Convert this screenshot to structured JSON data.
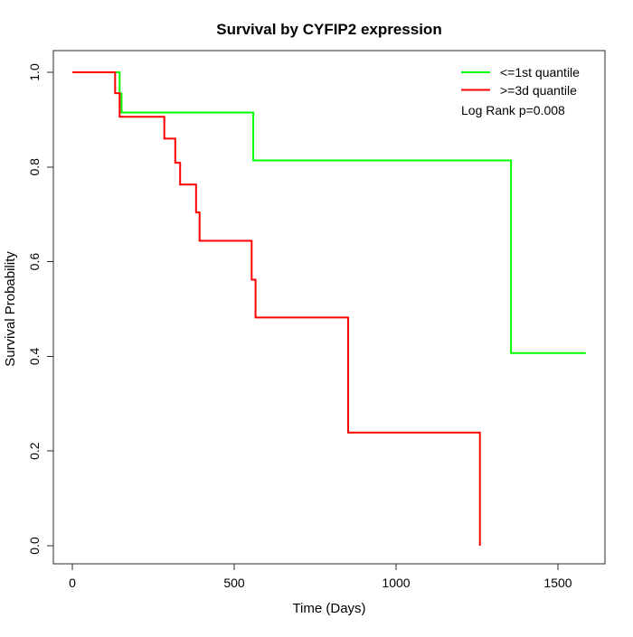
{
  "chart": {
    "title": "Survival by CYFIP2 expression",
    "xlabel": "Time (Days)",
    "ylabel": "Survival Probability"
  },
  "legend": {
    "entries": [
      {
        "label": "<=1st quantile",
        "color": "#00ff00"
      },
      {
        "label": ">=3d quantile",
        "color": "#ff0000"
      }
    ],
    "note": "Log Rank p=0.008"
  },
  "chart_data": {
    "type": "line",
    "subtype": "kaplan-meier-step",
    "title": "Survival by CYFIP2 expression",
    "xlabel": "Time (Days)",
    "ylabel": "Survival Probability",
    "xlim": [
      0,
      1645
    ],
    "ylim": [
      0,
      1
    ],
    "x_ticks": [
      0,
      500,
      1000,
      1500
    ],
    "x_tick_labels": [
      "0",
      "500",
      "1000",
      "1500"
    ],
    "y_ticks": [
      0,
      0.2,
      0.4,
      0.6,
      0.8,
      1.0
    ],
    "y_tick_labels": [
      "0.0",
      "0.2",
      "0.4",
      "0.6",
      "0.8",
      "1.0"
    ],
    "grid": false,
    "legend_position": "top-right",
    "annotation": "Log Rank p=0.008",
    "series": [
      {
        "name": "<=1st quantile",
        "color": "#00ff00",
        "steps": [
          [
            0,
            1.0
          ],
          [
            146,
            0.955
          ],
          [
            152,
            0.915
          ],
          [
            559,
            0.814
          ],
          [
            1355,
            0.407
          ]
        ],
        "end_time": 1586
      },
      {
        "name": ">=3d quantile",
        "color": "#ff0000",
        "steps": [
          [
            0,
            1.0
          ],
          [
            132,
            0.956
          ],
          [
            146,
            0.906
          ],
          [
            284,
            0.86
          ],
          [
            318,
            0.809
          ],
          [
            333,
            0.763
          ],
          [
            382,
            0.704
          ],
          [
            393,
            0.644
          ],
          [
            554,
            0.562
          ],
          [
            566,
            0.482
          ],
          [
            852,
            0.239
          ],
          [
            1259,
            0.0
          ]
        ],
        "end_time": 1259
      }
    ]
  }
}
